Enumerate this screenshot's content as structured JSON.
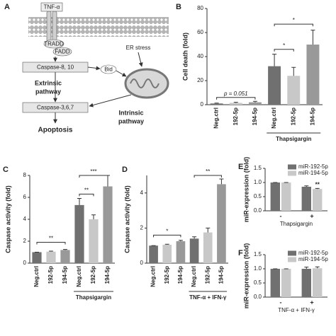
{
  "diagram": {
    "panel": "A",
    "tnf": "TNF-α",
    "tradd": "TRADD",
    "fadd": "FADD",
    "er_stress": "ER stress",
    "caspase_8_10": "Caspase-8, 10",
    "bid": "Bid",
    "extrinsic": [
      "Extrinsic",
      "pathway"
    ],
    "intrinsic": [
      "Intrinsic",
      "pathway"
    ],
    "caspase_3_6_7": "Caspase-3,6,7",
    "apoptosis": "Apoptosis"
  },
  "chart_data": [
    {
      "type": "bar",
      "panel": "B",
      "y_label": "Cell death (fold)",
      "categories": [
        "Neg.ctrl",
        "192-5p",
        "194-5p",
        "Neg.ctrl",
        "192-5p",
        "194-5p"
      ],
      "values": [
        1,
        1.5,
        2,
        32,
        24,
        50
      ],
      "errors": [
        0.3,
        0.5,
        0.8,
        10,
        7,
        12
      ],
      "colors": [
        "#707070",
        "#c8c8c8",
        "#999999",
        "#707070",
        "#c8c8c8",
        "#999999"
      ],
      "ylim": [
        0,
        80
      ],
      "yticks": [
        0,
        20,
        40,
        60,
        80
      ],
      "group_label": "Thapsigargin",
      "annotations": [
        "p = 0.051",
        "*",
        "*"
      ]
    },
    {
      "type": "bar",
      "panel": "C",
      "y_label": "Caspase activity (fold)",
      "categories": [
        "Neg.ctrl",
        "192-5p",
        "194-5p",
        "Neg.ctrl",
        "192-5p",
        "194-5p"
      ],
      "values": [
        1,
        1.05,
        1.2,
        5.3,
        4.0,
        7.0
      ],
      "errors": [
        0,
        0.05,
        0.05,
        0.6,
        0.4,
        1.0
      ],
      "colors": [
        "#707070",
        "#c8c8c8",
        "#999999",
        "#707070",
        "#c8c8c8",
        "#999999"
      ],
      "ylim": [
        0,
        8
      ],
      "yticks": [
        0,
        2,
        4,
        6,
        8
      ],
      "group_label": "Thapsigargin",
      "annotations": [
        "**",
        "**",
        "***"
      ]
    },
    {
      "type": "bar",
      "panel": "D",
      "y_label": "Caspase activity (fold)",
      "categories": [
        "Neg.ctrl",
        "192-5p",
        "194-5p",
        "Neg.ctrl",
        "192-5p",
        "194-5p"
      ],
      "values": [
        1,
        1.05,
        1.25,
        1.4,
        1.75,
        4.5
      ],
      "errors": [
        0,
        0.03,
        0.05,
        0.1,
        0.25,
        0.3
      ],
      "colors": [
        "#707070",
        "#c8c8c8",
        "#999999",
        "#707070",
        "#c8c8c8",
        "#999999"
      ],
      "ylim": [
        0,
        5
      ],
      "yticks": [
        0,
        2,
        4
      ],
      "group_label": "TNF-α + IFN-γ",
      "annotations": [
        "*",
        "**"
      ]
    },
    {
      "type": "grouped_bar",
      "panel": "E",
      "y_label": "miR-expression (fold)",
      "x_label": "Thapsigargin",
      "categories": [
        "-",
        "+"
      ],
      "series": [
        {
          "name": "miR-192-5p",
          "color": "#707070",
          "values": [
            1,
            0.85
          ],
          "errors": [
            0,
            0.03
          ]
        },
        {
          "name": "miR-194-5p",
          "color": "#c8c8c8",
          "values": [
            1,
            0.77
          ],
          "errors": [
            0,
            0.02
          ]
        }
      ],
      "ylim": [
        0,
        1.5
      ],
      "yticks": [
        {
          "value": 0,
          "label": "0.0"
        },
        {
          "value": 0.5,
          "label": "0.5"
        },
        {
          "value": 1,
          "label": "1.0"
        },
        {
          "value": 1.5,
          "label": "1.5"
        }
      ],
      "annotations": [
        "**"
      ]
    },
    {
      "type": "grouped_bar",
      "panel": "F",
      "y_label": "miR-expression (fold)",
      "x_label": "TNF-α + IFN-γ",
      "categories": [
        "-",
        "+"
      ],
      "series": [
        {
          "name": "miR-192-5p",
          "color": "#707070",
          "values": [
            1,
            1.0
          ],
          "errors": [
            0,
            0.06
          ]
        },
        {
          "name": "miR-194-5p",
          "color": "#c8c8c8",
          "values": [
            1,
            1.02
          ],
          "errors": [
            0,
            0.05
          ]
        }
      ],
      "ylim": [
        0,
        1.5
      ],
      "yticks": [
        {
          "value": 0,
          "label": "0.0"
        },
        {
          "value": 0.5,
          "label": "0.5"
        },
        {
          "value": 1,
          "label": "1.0"
        },
        {
          "value": 1.5,
          "label": "1.5"
        }
      ],
      "annotations": []
    }
  ]
}
